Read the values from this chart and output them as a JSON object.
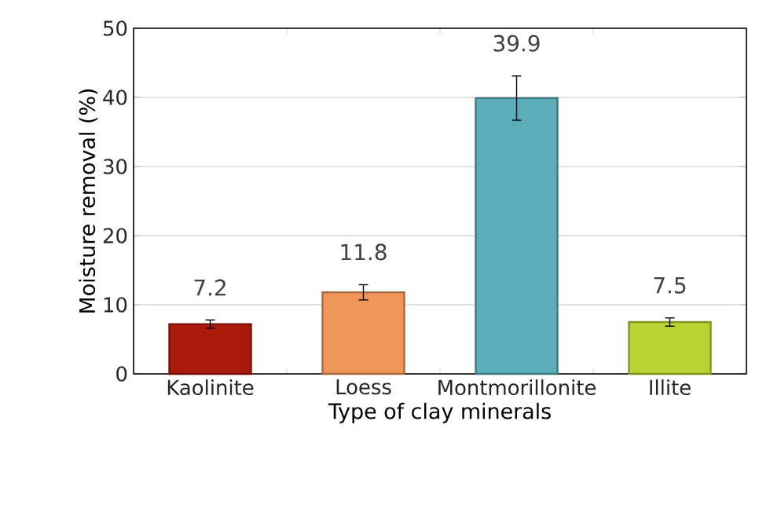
{
  "chart_data": {
    "type": "bar",
    "xlabel": "Type of clay minerals",
    "ylabel": "Moisture removal (%)",
    "categories": [
      "Kaolinite",
      "Loess",
      "Montmorillonite",
      "Illite"
    ],
    "values": [
      7.2,
      11.8,
      39.9,
      7.5
    ],
    "errors": [
      0.6,
      1.1,
      3.2,
      0.6
    ],
    "colors": [
      "#aa1a0a",
      "#f0965a",
      "#5badb9",
      "#b8d432"
    ],
    "ylim": [
      0,
      50
    ],
    "yticks": [
      0,
      10,
      20,
      30,
      40,
      50
    ],
    "grid": "y",
    "data_labels": true
  }
}
